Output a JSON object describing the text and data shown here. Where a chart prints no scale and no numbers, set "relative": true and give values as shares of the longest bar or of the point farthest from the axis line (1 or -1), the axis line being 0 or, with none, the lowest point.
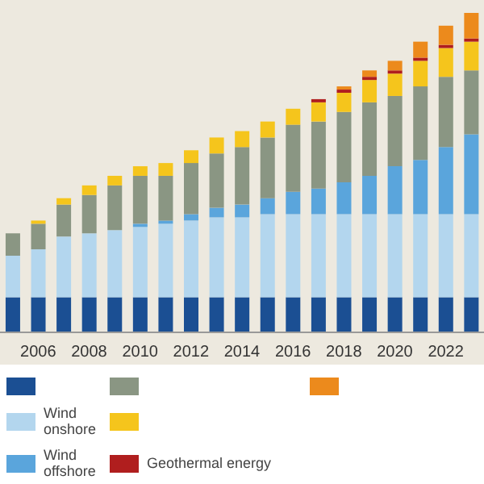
{
  "chart_data": {
    "type": "bar",
    "stacked": true,
    "relative": true,
    "legend": "bottom",
    "categories": [
      null,
      "2006",
      null,
      "2008",
      null,
      "2010",
      null,
      "2012",
      null,
      "2014",
      null,
      "2016",
      null,
      "2018",
      null,
      "2020",
      null,
      "2022",
      null
    ],
    "series": [
      {
        "color": "#1b4f93",
        "values": [
          0.11,
          0.11,
          0.11,
          0.11,
          0.11,
          0.11,
          0.11,
          0.11,
          0.11,
          0.11,
          0.11,
          0.11,
          0.11,
          0.11,
          0.11,
          0.11,
          0.11,
          0.11,
          0.11
        ]
      },
      {
        "name": "Wind onshore",
        "color": "#b3d6ee",
        "values": [
          0.13,
          0.15,
          0.19,
          0.2,
          0.21,
          0.22,
          0.23,
          0.24,
          0.25,
          0.25,
          0.26,
          0.26,
          0.26,
          0.26,
          0.26,
          0.26,
          0.26,
          0.26,
          0.26
        ]
      },
      {
        "name": "Wind offshore",
        "color": "#5aa5dc",
        "values": [
          0,
          0,
          0,
          0,
          0,
          0.01,
          0.01,
          0.02,
          0.03,
          0.04,
          0.05,
          0.07,
          0.08,
          0.1,
          0.12,
          0.15,
          0.17,
          0.21,
          0.25
        ]
      },
      {
        "color": "#8a9683",
        "values": [
          0.07,
          0.08,
          0.1,
          0.12,
          0.14,
          0.15,
          0.14,
          0.16,
          0.17,
          0.18,
          0.19,
          0.21,
          0.21,
          0.22,
          0.23,
          0.22,
          0.23,
          0.22,
          0.2
        ]
      },
      {
        "color": "#f5c51c",
        "values": [
          0,
          0.01,
          0.02,
          0.03,
          0.03,
          0.03,
          0.04,
          0.04,
          0.05,
          0.05,
          0.05,
          0.05,
          0.06,
          0.06,
          0.07,
          0.07,
          0.08,
          0.09,
          0.09
        ]
      },
      {
        "name": "Geothermal energy",
        "color": "#b01e1e",
        "values": [
          0,
          0,
          0,
          0,
          0,
          0,
          0,
          0,
          0,
          0,
          0,
          0,
          0.01,
          0.01,
          0.01,
          0.01,
          0.01,
          0.01,
          0.01
        ]
      },
      {
        "color": "#ec8a1c",
        "values": [
          0,
          0,
          0,
          0,
          0,
          0,
          0,
          0,
          0,
          0,
          0,
          0,
          0,
          0.01,
          0.02,
          0.03,
          0.05,
          0.06,
          0.08
        ]
      }
    ]
  }
}
